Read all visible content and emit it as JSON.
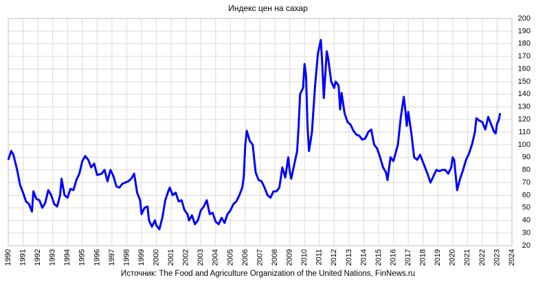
{
  "chart_data": {
    "type": "line",
    "title": "Индекс цен на сахар",
    "source": "Источник: The Food and Agriculture Organization of the United Nations, FinNews.ru",
    "color": "#0000ff",
    "grid": true,
    "xlim": [
      1990,
      2024
    ],
    "xticks": [
      1990,
      1991,
      1992,
      1993,
      1994,
      1995,
      1996,
      1997,
      1998,
      1999,
      2000,
      2001,
      2002,
      2003,
      2004,
      2005,
      2006,
      2007,
      2008,
      2009,
      2010,
      2011,
      2012,
      2013,
      2014,
      2015,
      2016,
      2017,
      2018,
      2019,
      2020,
      2021,
      2022,
      2023,
      2024
    ],
    "ylim": [
      20,
      200
    ],
    "yticks": [
      20,
      30,
      40,
      50,
      60,
      70,
      80,
      90,
      100,
      110,
      120,
      130,
      140,
      150,
      160,
      170,
      180,
      190,
      200
    ],
    "x": [
      1990.0,
      1990.2,
      1990.35,
      1990.6,
      1990.8,
      1991.0,
      1991.2,
      1991.4,
      1991.6,
      1991.7,
      1991.9,
      1992.1,
      1992.3,
      1992.5,
      1992.7,
      1992.9,
      1993.1,
      1993.3,
      1993.5,
      1993.6,
      1993.8,
      1994.0,
      1994.2,
      1994.4,
      1994.6,
      1994.8,
      1995.0,
      1995.2,
      1995.4,
      1995.6,
      1995.8,
      1996.0,
      1996.3,
      1996.5,
      1996.7,
      1996.9,
      1997.1,
      1997.3,
      1997.5,
      1997.7,
      1997.9,
      1998.1,
      1998.3,
      1998.5,
      1998.7,
      1998.9,
      1999.0,
      1999.2,
      1999.4,
      1999.5,
      1999.7,
      1999.9,
      2000.0,
      2000.2,
      2000.4,
      2000.6,
      2000.8,
      2000.9,
      2001.1,
      2001.3,
      2001.5,
      2001.7,
      2001.9,
      2002.1,
      2002.2,
      2002.4,
      2002.6,
      2002.8,
      2003.0,
      2003.2,
      2003.4,
      2003.6,
      2003.8,
      2004.0,
      2004.2,
      2004.4,
      2004.6,
      2004.8,
      2005.0,
      2005.2,
      2005.4,
      2005.6,
      2005.8,
      2005.9,
      2006.0,
      2006.1,
      2006.3,
      2006.5,
      2006.7,
      2006.9,
      2007.1,
      2007.3,
      2007.5,
      2007.7,
      2007.9,
      2008.1,
      2008.3,
      2008.5,
      2008.7,
      2008.9,
      2009.0,
      2009.1,
      2009.3,
      2009.5,
      2009.6,
      2009.7,
      2009.9,
      2010.0,
      2010.1,
      2010.2,
      2010.3,
      2010.5,
      2010.7,
      2010.9,
      2011.1,
      2011.2,
      2011.3,
      2011.5,
      2011.6,
      2011.8,
      2012.0,
      2012.1,
      2012.3,
      2012.4,
      2012.5,
      2012.7,
      2012.9,
      2013.1,
      2013.3,
      2013.5,
      2013.7,
      2013.9,
      2014.1,
      2014.3,
      2014.5,
      2014.7,
      2014.9,
      2015.1,
      2015.3,
      2015.5,
      2015.6,
      2015.8,
      2016.0,
      2016.3,
      2016.5,
      2016.7,
      2016.8,
      2016.9,
      2017.0,
      2017.2,
      2017.4,
      2017.6,
      2017.8,
      2018.0,
      2018.3,
      2018.5,
      2018.7,
      2018.9,
      2019.1,
      2019.3,
      2019.5,
      2019.7,
      2019.9,
      2020.0,
      2020.1,
      2020.3,
      2020.5,
      2020.7,
      2020.9,
      2021.1,
      2021.3,
      2021.5,
      2021.6,
      2021.8,
      2022.0,
      2022.2,
      2022.4,
      2022.6,
      2022.8,
      2022.9,
      2023.0,
      2023.1,
      2023.2
    ],
    "values": [
      88,
      95,
      92,
      80,
      68,
      62,
      55,
      53,
      47,
      63,
      57,
      56,
      50,
      54,
      64,
      60,
      53,
      51,
      60,
      73,
      60,
      58,
      65,
      64,
      72,
      77,
      87,
      91,
      88,
      82,
      85,
      76,
      77,
      80,
      71,
      80,
      75,
      67,
      66,
      69,
      70,
      71,
      73,
      77,
      62,
      56,
      45,
      50,
      51,
      40,
      35,
      40,
      36,
      33,
      42,
      56,
      63,
      66,
      60,
      62,
      55,
      56,
      48,
      45,
      40,
      44,
      37,
      40,
      48,
      51,
      56,
      45,
      46,
      39,
      37,
      42,
      38,
      45,
      48,
      53,
      55,
      60,
      66,
      75,
      100,
      111,
      103,
      100,
      78,
      72,
      71,
      66,
      60,
      58,
      63,
      63,
      66,
      82,
      74,
      90,
      79,
      73,
      84,
      95,
      115,
      140,
      145,
      164,
      155,
      115,
      95,
      110,
      145,
      172,
      183,
      163,
      137,
      174,
      168,
      150,
      145,
      150,
      147,
      128,
      141,
      125,
      118,
      116,
      111,
      108,
      107,
      104,
      105,
      110,
      112,
      100,
      97,
      90,
      82,
      78,
      72,
      90,
      87,
      100,
      122,
      138,
      128,
      115,
      126,
      110,
      90,
      88,
      92,
      86,
      77,
      70,
      75,
      80,
      79,
      80,
      80,
      77,
      82,
      90,
      88,
      64,
      73,
      80,
      88,
      93,
      100,
      110,
      121,
      119,
      118,
      112,
      122,
      116,
      110,
      109,
      117,
      119,
      125
    ]
  }
}
